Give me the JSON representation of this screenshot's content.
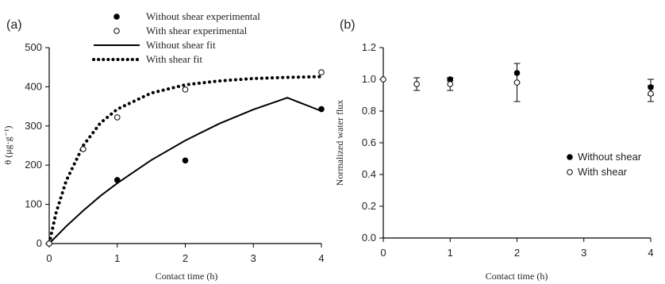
{
  "chart_data": [
    {
      "panel_label": "(a)",
      "type": "scatter",
      "xlabel": "Contact time (h)",
      "ylabel": "θ (μg·g⁻¹)",
      "xlim": [
        0,
        4
      ],
      "ylim": [
        0,
        500
      ],
      "xticks": [
        "0",
        "1",
        "2",
        "3",
        "4"
      ],
      "yticks": [
        "0",
        "100",
        "200",
        "300",
        "400",
        "500"
      ],
      "legend_position": "top-center",
      "series": [
        {
          "name": "Without shear experimental",
          "marker": "filled-circle",
          "x": [
            0,
            1,
            2,
            4
          ],
          "y": [
            0,
            162,
            212,
            343
          ]
        },
        {
          "name": "With shear experimental",
          "marker": "open-circle",
          "x": [
            0,
            0.5,
            1,
            2,
            4
          ],
          "y": [
            0,
            241,
            322,
            393,
            437
          ]
        },
        {
          "name": "Without shear fit",
          "style": "solid",
          "x": [
            0,
            0.25,
            0.5,
            0.75,
            1,
            1.5,
            2,
            2.5,
            3,
            3.5,
            4
          ],
          "y": [
            0,
            44,
            84,
            121,
            154,
            213,
            263,
            306,
            342,
            372,
            338
          ]
        },
        {
          "name": "With shear fit",
          "style": "dotted",
          "x": [
            0,
            0.1,
            0.25,
            0.5,
            0.75,
            1,
            1.5,
            2,
            2.5,
            3,
            3.5,
            4
          ],
          "y": [
            0,
            78,
            160,
            250,
            307,
            343,
            384,
            405,
            415,
            421,
            424,
            426
          ]
        }
      ]
    },
    {
      "panel_label": "(b)",
      "type": "scatter",
      "xlabel": "Contact time (h)",
      "ylabel": "Normalized water flux",
      "xlim": [
        0,
        4
      ],
      "ylim": [
        0.0,
        1.2
      ],
      "xticks": [
        "0",
        "1",
        "2",
        "3",
        "4"
      ],
      "yticks": [
        "0.0",
        "0.2",
        "0.4",
        "0.6",
        "0.8",
        "1.0",
        "1.2"
      ],
      "legend_position": "right-middle",
      "series": [
        {
          "name": "Without shear",
          "marker": "filled-circle",
          "x": [
            1,
            2,
            4
          ],
          "y": [
            1.0,
            1.04,
            0.95
          ],
          "err": [
            0.01,
            0.06,
            0.05
          ]
        },
        {
          "name": "With shear",
          "marker": "open-circle",
          "x": [
            0,
            0.5,
            1,
            2,
            4
          ],
          "y": [
            1.0,
            0.97,
            0.97,
            0.98,
            0.91
          ],
          "err": [
            0,
            0.04,
            0.04,
            0.12,
            0.05
          ]
        }
      ]
    }
  ]
}
